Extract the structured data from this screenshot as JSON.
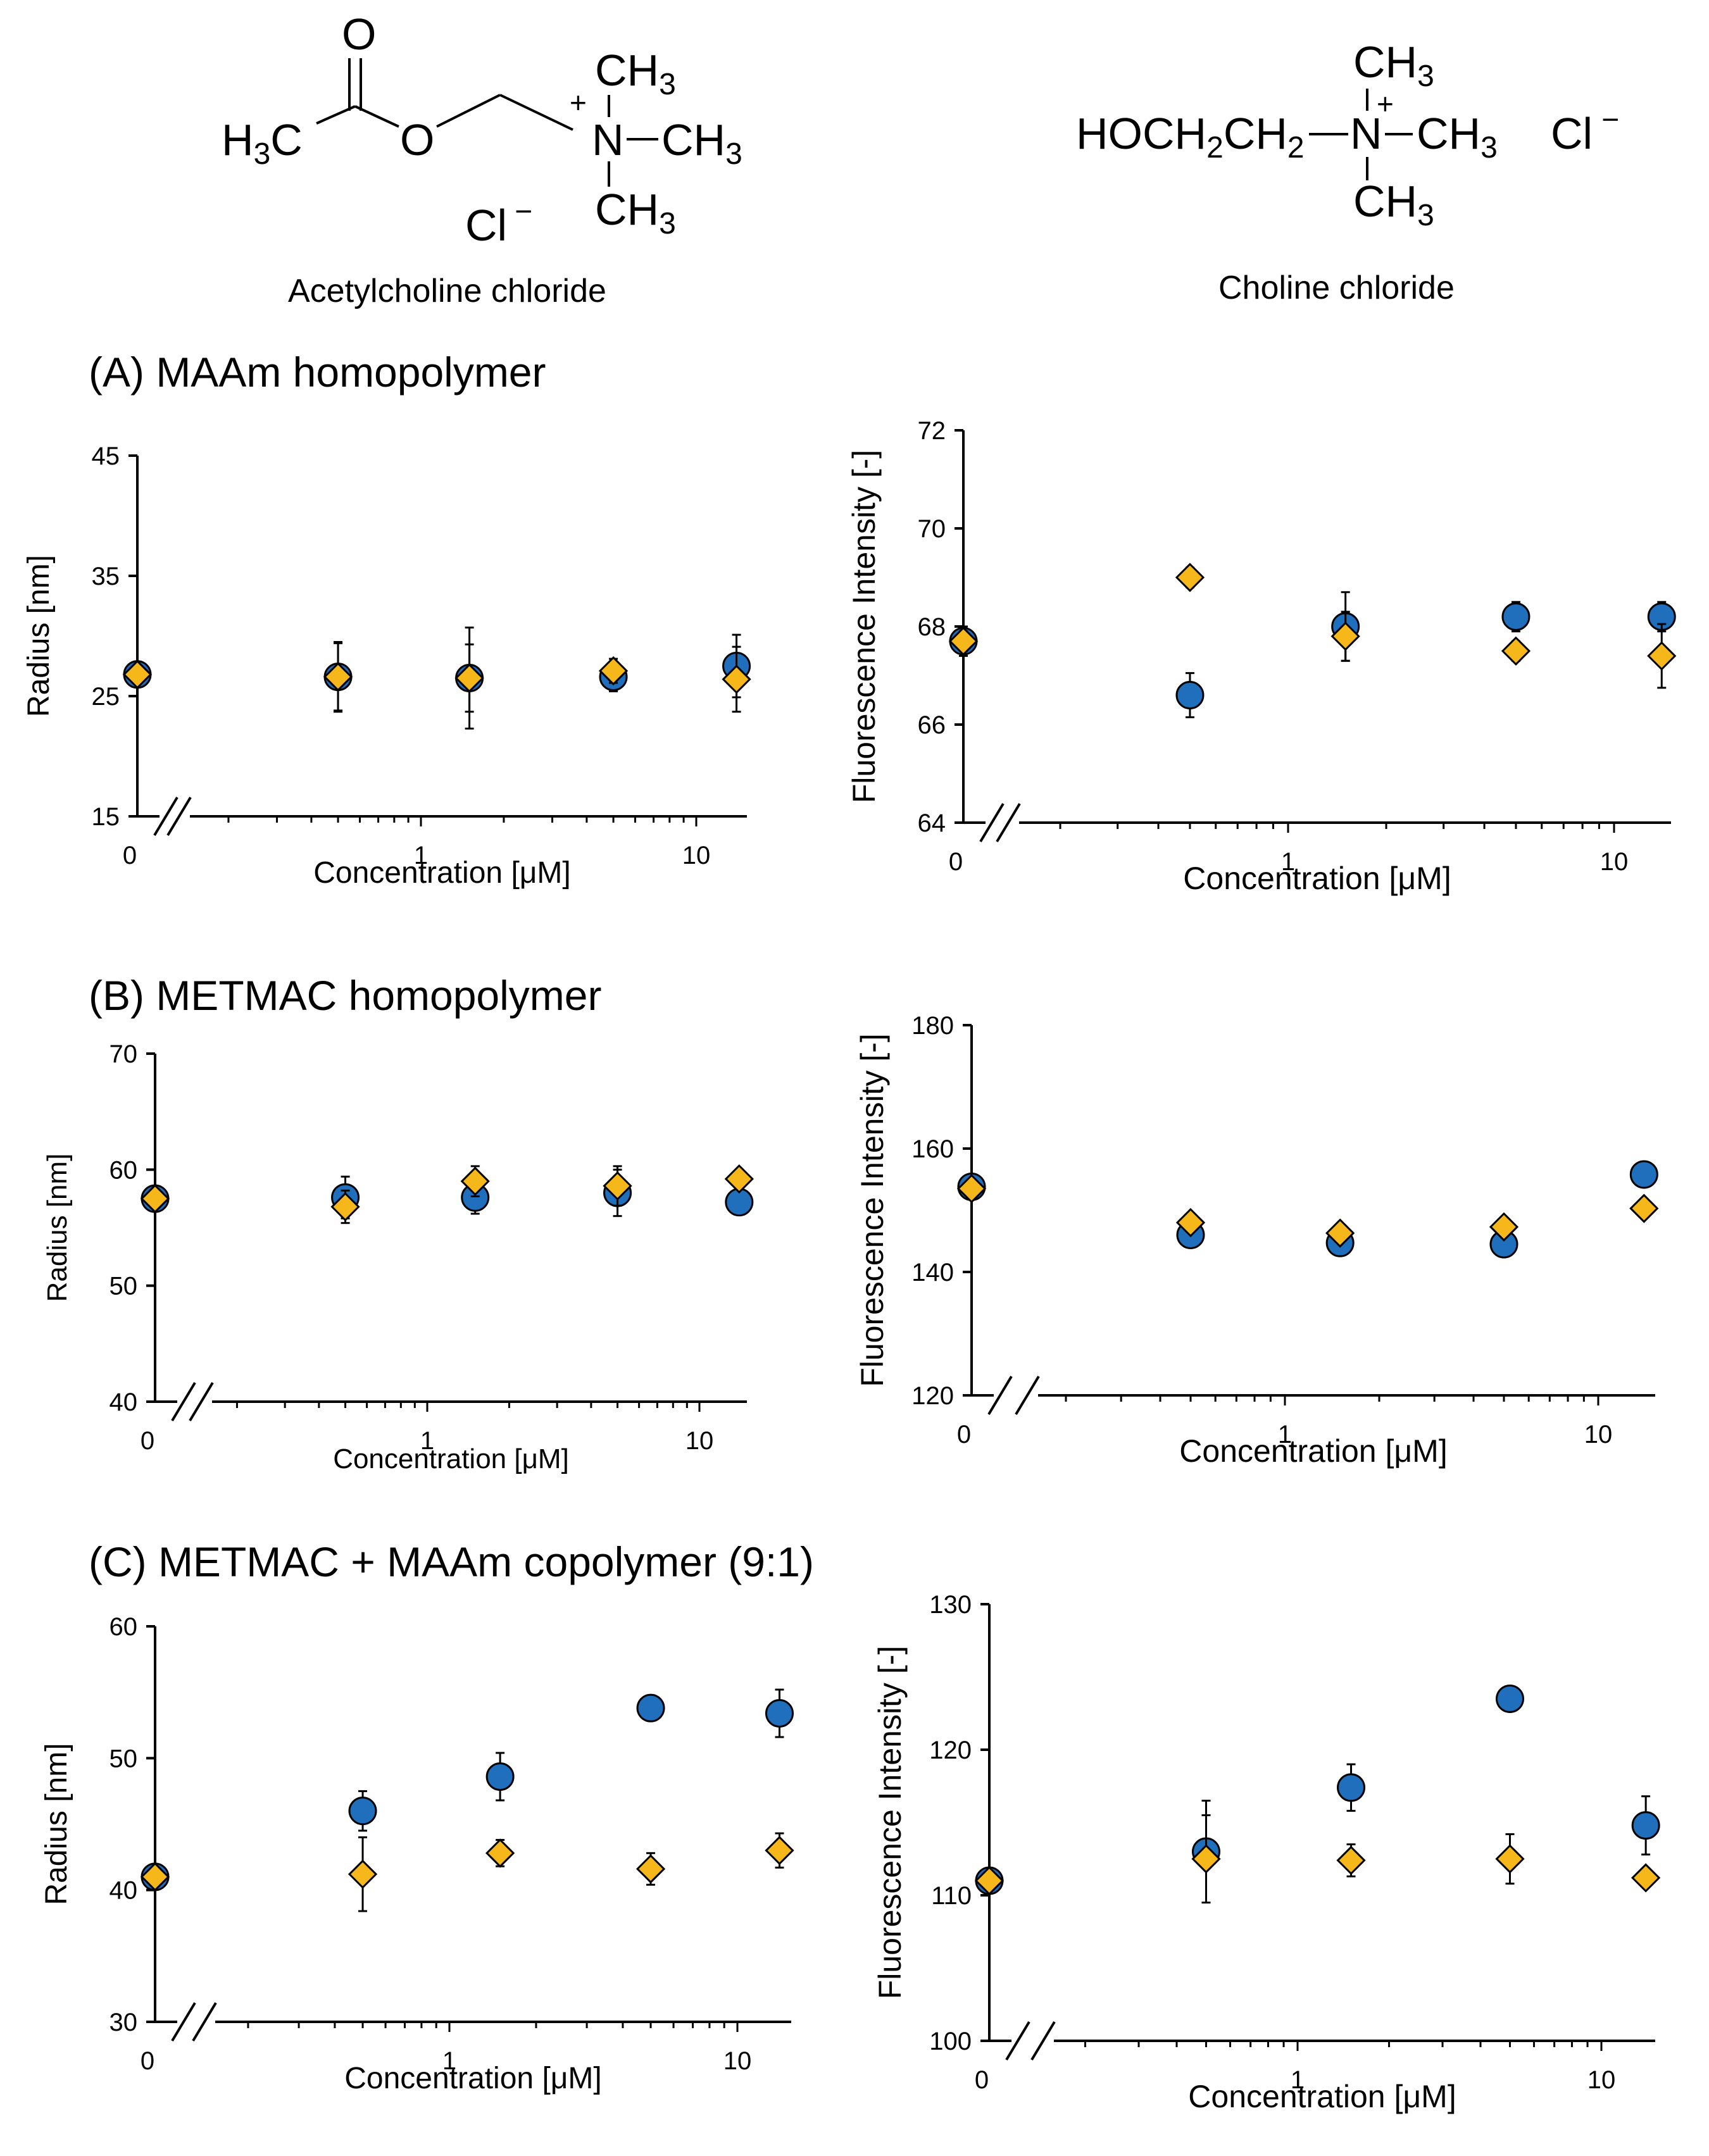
{
  "compounds": [
    {
      "name": "Acetylcholine chloride"
    },
    {
      "name": "Choline chloride"
    }
  ],
  "structures": {
    "acetylcholine": {
      "o_top": "O",
      "h3c": "H3C",
      "o_ester": "O",
      "plus": "+",
      "n": "N",
      "ch3_top": "CH3",
      "ch3_right": "CH3",
      "ch3_bottom": "CH3",
      "cl": "Cl",
      "minus": "−"
    },
    "choline": {
      "hoch2ch2": "HOCH2CH2",
      "n": "N",
      "plus": "+",
      "ch3_top": "CH3",
      "ch3_right": "CH3",
      "ch3_bottom": "CH3",
      "cl": "Cl",
      "minus": "−"
    }
  },
  "sections": [
    {
      "title": "(A) MAAm homopolymer"
    },
    {
      "title": "(B) METMAC homopolymer"
    },
    {
      "title": "(C) METMAC + MAAm copolymer (9:1)"
    }
  ],
  "series_styles": {
    "circle_color": "#1f6fbd",
    "diamond_color": "#f5b719",
    "edge_color": "#000000"
  },
  "chart_data": [
    {
      "type": "scatter",
      "panel": "A-radius",
      "title": "(A) MAAm homopolymer",
      "xlabel": "Concentration [μM]",
      "ylabel": "Radius [nm]",
      "xscale": "log-with-break",
      "ylim": [
        15,
        45
      ],
      "yticks": [
        "15",
        "25",
        "35",
        "45"
      ],
      "xticks": [
        "0",
        "1",
        "10"
      ],
      "grid": false,
      "series": [
        {
          "name": "circles",
          "marker": "circle",
          "x": [
            0,
            0.5,
            1.5,
            5,
            14
          ],
          "y": [
            26.8,
            26.6,
            26.5,
            26.6,
            27.5
          ],
          "err": [
            0.6,
            2.8,
            4.2,
            1.2,
            2.6
          ]
        },
        {
          "name": "diamonds",
          "marker": "diamond",
          "x": [
            0,
            0.5,
            1.5,
            5,
            14
          ],
          "y": [
            26.8,
            26.6,
            26.5,
            27.1,
            26.4
          ],
          "err": [
            0.6,
            2.9,
            2.8,
            1.0,
            2.7
          ]
        }
      ]
    },
    {
      "type": "scatter",
      "panel": "A-fluorescence",
      "title": "(A) MAAm homopolymer",
      "xlabel": "Concentration [μM]",
      "ylabel": "Fluorescence Intensity [-]",
      "xscale": "log-with-break",
      "ylim": [
        64,
        72
      ],
      "yticks": [
        "64",
        "66",
        "68",
        "70",
        "72"
      ],
      "xticks": [
        "0",
        "1",
        "10"
      ],
      "grid": false,
      "series": [
        {
          "name": "circles",
          "marker": "circle",
          "x": [
            0,
            0.5,
            1.5,
            5,
            14
          ],
          "y": [
            67.7,
            66.6,
            68.0,
            68.2,
            68.2
          ],
          "err": [
            0.3,
            0.45,
            0.7,
            0.3,
            0.3
          ]
        },
        {
          "name": "diamonds",
          "marker": "diamond",
          "x": [
            0,
            0.5,
            1.5,
            5,
            14
          ],
          "y": [
            67.7,
            69.0,
            67.8,
            67.5,
            67.4
          ],
          "err": [
            0.2,
            0.2,
            0.5,
            0.2,
            0.65
          ]
        }
      ]
    },
    {
      "type": "scatter",
      "panel": "B-radius",
      "title": "(B) METMAC homopolymer",
      "xlabel": "Concentration [μM]",
      "ylabel": "Radius [nm]",
      "xscale": "log-with-break",
      "ylim": [
        40,
        70
      ],
      "yticks": [
        "40",
        "50",
        "60",
        "70"
      ],
      "xticks": [
        "0",
        "1",
        "10"
      ],
      "grid": false,
      "series": [
        {
          "name": "circles",
          "marker": "circle",
          "x": [
            0,
            0.5,
            1.5,
            5,
            14
          ],
          "y": [
            57.5,
            57.6,
            57.6,
            58.0,
            57.2
          ],
          "err": [
            0.8,
            1.8,
            1.4,
            2.0,
            0.9
          ]
        },
        {
          "name": "diamonds",
          "marker": "diamond",
          "x": [
            0,
            0.5,
            1.5,
            5,
            14
          ],
          "y": [
            57.5,
            56.8,
            59.0,
            58.6,
            59.2
          ],
          "err": [
            0.6,
            1.4,
            1.3,
            1.7,
            0.8
          ]
        }
      ]
    },
    {
      "type": "scatter",
      "panel": "B-fluorescence",
      "title": "(B) METMAC homopolymer",
      "xlabel": "Concentration [μM]",
      "ylabel": "Fluorescence Intensity [-]",
      "xscale": "log-with-break",
      "ylim": [
        120,
        180
      ],
      "yticks": [
        "120",
        "140",
        "160",
        "180"
      ],
      "xticks": [
        "0",
        "1",
        "10"
      ],
      "grid": false,
      "series": [
        {
          "name": "circles",
          "marker": "circle",
          "x": [
            0,
            0.5,
            1.5,
            5,
            14
          ],
          "y": [
            153.8,
            146.0,
            144.7,
            144.5,
            155.8
          ],
          "err": [
            1.0,
            1.0,
            1.0,
            1.5,
            1.0
          ]
        },
        {
          "name": "diamonds",
          "marker": "diamond",
          "x": [
            0,
            0.5,
            1.5,
            5,
            14
          ],
          "y": [
            153.5,
            148.0,
            146.3,
            147.3,
            150.3
          ],
          "err": [
            0.8,
            0.8,
            0.8,
            1.3,
            0.8
          ]
        }
      ]
    },
    {
      "type": "scatter",
      "panel": "C-radius",
      "title": "(C) METMAC + MAAm copolymer (9:1)",
      "xlabel": "Concentration [μM]",
      "ylabel": "Radius [nm]",
      "xscale": "log-with-break",
      "ylim": [
        30,
        60
      ],
      "yticks": [
        "30",
        "40",
        "50",
        "60"
      ],
      "xticks": [
        "0",
        "1",
        "10"
      ],
      "grid": false,
      "series": [
        {
          "name": "circles",
          "marker": "circle",
          "x": [
            0,
            0.5,
            1.5,
            5,
            14
          ],
          "y": [
            41.0,
            46.0,
            48.6,
            53.8,
            53.4
          ],
          "err": [
            0.6,
            1.5,
            1.8,
            0.5,
            1.8
          ]
        },
        {
          "name": "diamonds",
          "marker": "diamond",
          "x": [
            0,
            0.5,
            1.5,
            5,
            14
          ],
          "y": [
            41.0,
            41.2,
            42.8,
            41.6,
            43.0
          ],
          "err": [
            0.5,
            2.8,
            1.0,
            1.2,
            1.3
          ]
        }
      ]
    },
    {
      "type": "scatter",
      "panel": "C-fluorescence",
      "title": "(C) METMAC + MAAm copolymer (9:1)",
      "xlabel": "Concentration [μM]",
      "ylabel": "Fluorescence Intensity [-]",
      "xscale": "log-with-break",
      "ylim": [
        100,
        130
      ],
      "yticks": [
        "100",
        "110",
        "120",
        "130"
      ],
      "xticks": [
        "0",
        "1",
        "10"
      ],
      "grid": false,
      "series": [
        {
          "name": "circles",
          "marker": "circle",
          "x": [
            0,
            0.5,
            1.5,
            5,
            14
          ],
          "y": [
            111.0,
            113.0,
            117.4,
            123.5,
            114.8
          ],
          "err": [
            0.5,
            3.5,
            1.6,
            0.5,
            2.0
          ]
        },
        {
          "name": "diamonds",
          "marker": "diamond",
          "x": [
            0,
            0.5,
            1.5,
            5,
            14
          ],
          "y": [
            111.0,
            112.5,
            112.4,
            112.5,
            111.2
          ],
          "err": [
            0.5,
            3.0,
            1.1,
            1.7,
            0.5
          ]
        }
      ]
    }
  ]
}
